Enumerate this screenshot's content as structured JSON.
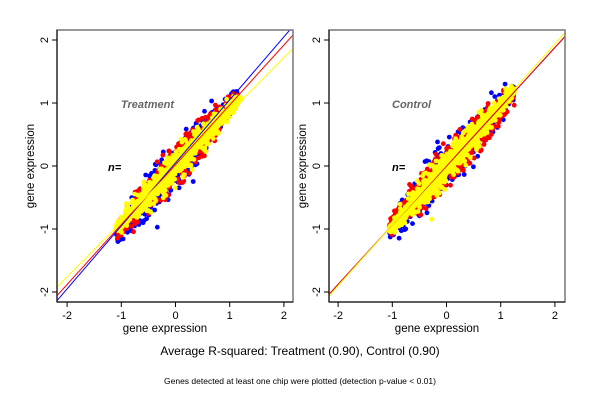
{
  "chart_data": [
    {
      "type": "scatter",
      "panel": "Treatment",
      "title": "Treatment",
      "annotation": "n=",
      "xlabel": "gene expression",
      "ylabel": "gene expression",
      "xlim": [
        -2.15,
        2.15
      ],
      "ylim": [
        -2.15,
        2.15
      ],
      "xticks": [
        "-2",
        "-1",
        "0",
        "1",
        "2"
      ],
      "yticks": [
        "-2",
        "-1",
        "0",
        "1",
        "2"
      ],
      "series": [
        {
          "name": "blue replicate",
          "color": "#0000ff",
          "cloud": {
            "x_range": [
              -1.1,
              1.15
            ],
            "slope": 0.98,
            "spread": 0.17
          }
        },
        {
          "name": "red replicate",
          "color": "#ff0000",
          "cloud": {
            "x_range": [
              -1.1,
              1.15
            ],
            "slope": 0.95,
            "spread": 0.15
          }
        },
        {
          "name": "yellow replicate",
          "color": "#ffff00",
          "cloud": {
            "x_range": [
              -1.1,
              1.2
            ],
            "slope": 0.9,
            "spread": 0.13
          }
        }
      ],
      "fit_lines": [
        {
          "color": "#0000ff",
          "slope": 1.0,
          "intercept": 0.05
        },
        {
          "color": "#ff0000",
          "slope": 0.95,
          "intercept": 0.02
        },
        {
          "color": "#ffff00",
          "slope": 0.87,
          "intercept": -0.02
        }
      ]
    },
    {
      "type": "scatter",
      "panel": "Control",
      "title": "Control",
      "annotation": "n=",
      "xlabel": "gene expression",
      "ylabel": "gene expression",
      "xlim": [
        -2.15,
        2.15
      ],
      "ylim": [
        -2.15,
        2.15
      ],
      "xticks": [
        "-2",
        "-1",
        "0",
        "1",
        "2"
      ],
      "yticks": [
        "-2",
        "-1",
        "0",
        "1",
        "2"
      ],
      "series": [
        {
          "name": "blue replicate",
          "color": "#0000ff",
          "cloud": {
            "x_range": [
              -1.05,
              1.25
            ],
            "slope": 0.97,
            "spread": 0.17
          }
        },
        {
          "name": "red replicate",
          "color": "#ff0000",
          "cloud": {
            "x_range": [
              -1.05,
              1.25
            ],
            "slope": 0.9,
            "spread": 0.16
          }
        },
        {
          "name": "yellow replicate",
          "color": "#ffff00",
          "cloud": {
            "x_range": [
              -1.05,
              1.25
            ],
            "slope": 0.96,
            "spread": 0.13
          }
        }
      ],
      "fit_lines": [
        {
          "color": "#0000ff",
          "slope": 0.94,
          "intercept": 0.0
        },
        {
          "color": "#ff0000",
          "slope": 0.94,
          "intercept": 0.0
        },
        {
          "color": "#ffff00",
          "slope": 0.96,
          "intercept": 0.02
        }
      ]
    }
  ],
  "caption": "Average R-squared: Treatment (0.90), Control (0.90)",
  "footnote": "Genes detected at least one chip were plotted (detection p-value < 0.01)",
  "r_squared": {
    "Treatment": 0.9,
    "Control": 0.9
  }
}
